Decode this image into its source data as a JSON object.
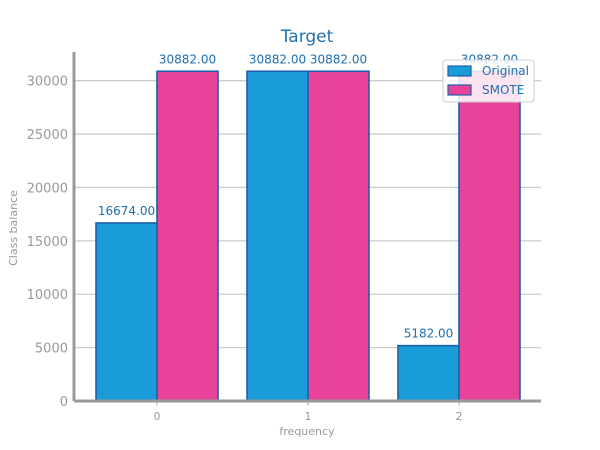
{
  "chart_data": {
    "type": "bar",
    "title": "Target",
    "xlabel": "frequency",
    "ylabel": "Class balance",
    "categories": [
      "0",
      "1",
      "2"
    ],
    "series": [
      {
        "name": "Original",
        "values": [
          16674.0,
          30882.0,
          5182.0
        ],
        "labels": [
          "16674.00",
          "30882.00",
          "5182.00"
        ],
        "color": "#1a9cd8"
      },
      {
        "name": "SMOTE",
        "values": [
          30882.0,
          30882.0,
          30882.0
        ],
        "labels": [
          "30882.00",
          "30882.00",
          "30882.00"
        ],
        "color": "#e8439a"
      }
    ],
    "ylim": [
      0,
      32500
    ],
    "yticks": [
      0,
      5000,
      10000,
      15000,
      20000,
      25000,
      30000
    ],
    "grid": true,
    "legend_position": "top-right",
    "colors": {
      "edge": "#1f5fa8",
      "text": "#1f6fae",
      "axis": "#999999",
      "grid": "#cccccc"
    }
  }
}
